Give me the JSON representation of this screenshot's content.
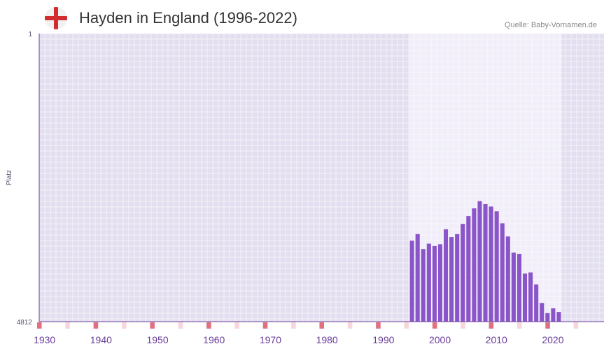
{
  "header": {
    "flag_icon": "england-flag-icon",
    "title": "Hayden in England (1996-2022)",
    "source": "Quelle: Baby-Vornamen.de"
  },
  "colors": {
    "bar": "#8a55c8",
    "plot_bg": "#e4dff0",
    "highlight_bg": "#f1edf9",
    "axis": "#6a3d9a",
    "grid": "#ffffff",
    "marker_strong": "#e0707f",
    "marker_light": "#f7d6dc"
  },
  "chart_data": {
    "type": "bar",
    "title": "Hayden in England (1996-2022)",
    "ylabel": "Platz",
    "xlabel": "",
    "y_reversed": true,
    "ylim": [
      4812,
      1
    ],
    "y_tick_labels": [
      "1",
      "4812"
    ],
    "xlim": [
      1929,
      2029
    ],
    "x_ticks": [
      1930,
      1940,
      1950,
      1960,
      1970,
      1980,
      1990,
      2000,
      2010,
      2020
    ],
    "highlight_range": [
      1994.5,
      2021.5
    ],
    "x": [
      1995,
      1996,
      1997,
      1998,
      1999,
      2000,
      2001,
      2002,
      2003,
      2004,
      2005,
      2006,
      2007,
      2008,
      2009,
      2010,
      2011,
      2012,
      2013,
      2014,
      2015,
      2016,
      2017,
      2018,
      2019,
      2020,
      2021
    ],
    "values": [
      3460,
      3350,
      3600,
      3510,
      3550,
      3520,
      3270,
      3400,
      3350,
      3180,
      3050,
      2920,
      2800,
      2850,
      2890,
      2970,
      3170,
      3390,
      3660,
      3680,
      4010,
      3990,
      4190,
      4500,
      4670,
      4590,
      4650
    ]
  }
}
